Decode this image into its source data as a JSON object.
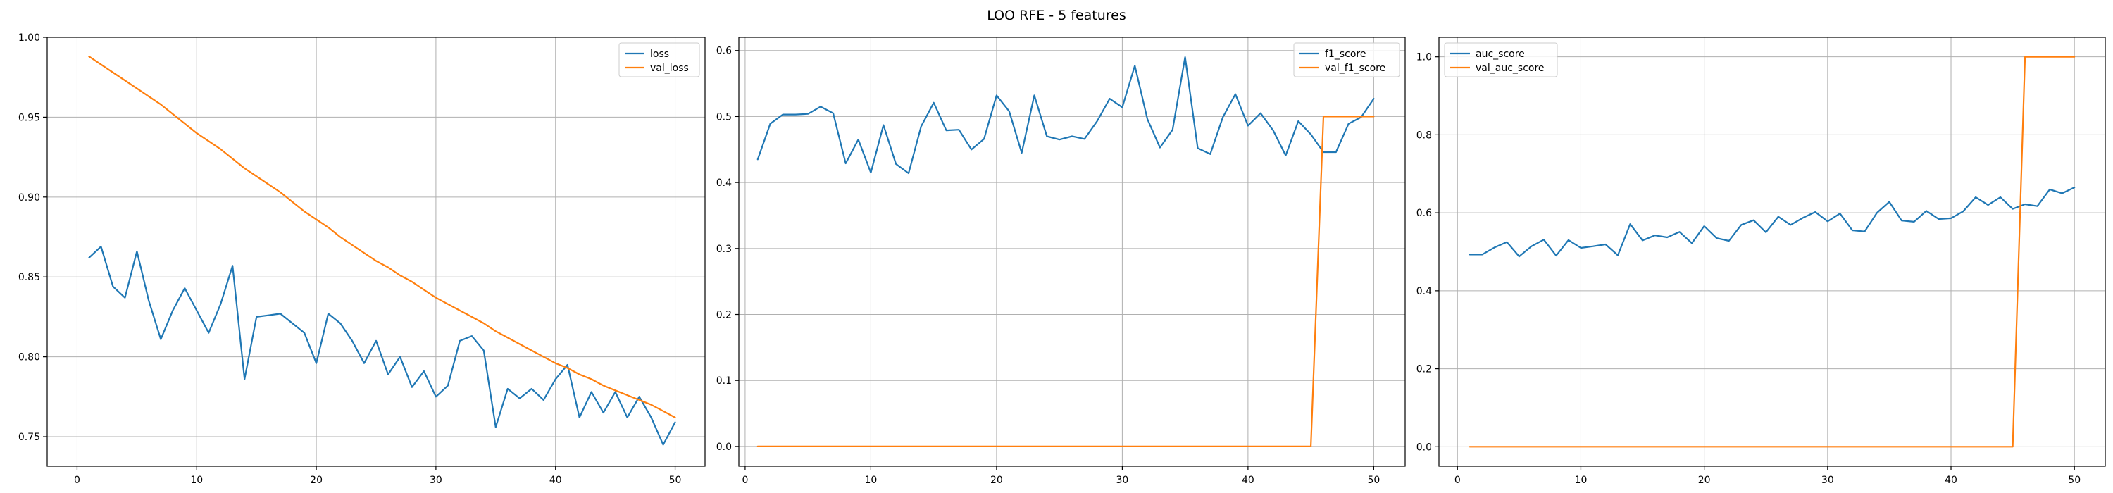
{
  "figure": {
    "suptitle": "LOO RFE - 5 features"
  },
  "chart_data": [
    {
      "type": "line",
      "x": [
        1,
        2,
        3,
        4,
        5,
        6,
        7,
        8,
        9,
        10,
        11,
        12,
        13,
        14,
        15,
        16,
        17,
        18,
        19,
        20,
        21,
        22,
        23,
        24,
        25,
        26,
        27,
        28,
        29,
        30,
        31,
        32,
        33,
        34,
        35,
        36,
        37,
        38,
        39,
        40,
        41,
        42,
        43,
        44,
        45,
        46,
        47,
        48,
        49,
        50
      ],
      "xlim": [
        -2.5,
        52.5
      ],
      "ylim": [
        0.7315,
        1.0
      ],
      "xticks": [
        0,
        10,
        20,
        30,
        40,
        50
      ],
      "yticks": [
        0.75,
        0.8,
        0.85,
        0.9,
        0.95,
        1.0
      ],
      "ytick_decimals": 2,
      "grid": true,
      "legend": "upper right",
      "series": [
        {
          "name": "loss",
          "color": "#1f77b4",
          "values": [
            0.862,
            0.869,
            0.844,
            0.837,
            0.866,
            0.835,
            0.811,
            0.829,
            0.843,
            0.829,
            0.815,
            0.833,
            0.857,
            0.786,
            0.825,
            0.826,
            0.827,
            0.821,
            0.815,
            0.796,
            0.827,
            0.821,
            0.81,
            0.796,
            0.81,
            0.789,
            0.8,
            0.781,
            0.791,
            0.775,
            0.782,
            0.81,
            0.813,
            0.804,
            0.756,
            0.78,
            0.774,
            0.78,
            0.773,
            0.786,
            0.795,
            0.762,
            0.778,
            0.765,
            0.778,
            0.762,
            0.775,
            0.762,
            0.745,
            0.759
          ]
        },
        {
          "name": "val_loss",
          "color": "#ff7f0e",
          "values": [
            0.988,
            0.983,
            0.978,
            0.973,
            0.968,
            0.963,
            0.958,
            0.952,
            0.946,
            0.94,
            0.935,
            0.93,
            0.924,
            0.918,
            0.913,
            0.908,
            0.903,
            0.897,
            0.891,
            0.886,
            0.881,
            0.875,
            0.87,
            0.865,
            0.86,
            0.856,
            0.851,
            0.847,
            0.842,
            0.837,
            0.833,
            0.829,
            0.825,
            0.821,
            0.816,
            0.812,
            0.808,
            0.804,
            0.8,
            0.796,
            0.793,
            0.789,
            0.786,
            0.782,
            0.779,
            0.776,
            0.773,
            0.77,
            0.766,
            0.762
          ]
        }
      ]
    },
    {
      "type": "line",
      "x": [
        1,
        2,
        3,
        4,
        5,
        6,
        7,
        8,
        9,
        10,
        11,
        12,
        13,
        14,
        15,
        16,
        17,
        18,
        19,
        20,
        21,
        22,
        23,
        24,
        25,
        26,
        27,
        28,
        29,
        30,
        31,
        32,
        33,
        34,
        35,
        36,
        37,
        38,
        39,
        40,
        41,
        42,
        43,
        44,
        45,
        46,
        47,
        48,
        49,
        50
      ],
      "xlim": [
        -0.5,
        52.5
      ],
      "ylim": [
        -0.03,
        0.62
      ],
      "xticks": [
        0,
        10,
        20,
        30,
        40,
        50
      ],
      "yticks": [
        0.0,
        0.1,
        0.2,
        0.3,
        0.4,
        0.5,
        0.6
      ],
      "ytick_decimals": 1,
      "grid": true,
      "legend": "upper right",
      "series": [
        {
          "name": "f1_score",
          "color": "#1f77b4",
          "values": [
            0.435,
            0.489,
            0.503,
            0.503,
            0.504,
            0.515,
            0.505,
            0.429,
            0.465,
            0.415,
            0.487,
            0.428,
            0.414,
            0.485,
            0.521,
            0.479,
            0.48,
            0.45,
            0.466,
            0.532,
            0.508,
            0.445,
            0.532,
            0.47,
            0.465,
            0.47,
            0.466,
            0.493,
            0.527,
            0.514,
            0.577,
            0.496,
            0.453,
            0.48,
            0.59,
            0.452,
            0.443,
            0.499,
            0.534,
            0.486,
            0.505,
            0.479,
            0.441,
            0.493,
            0.473,
            0.446,
            0.446,
            0.489,
            0.499,
            0.527
          ]
        },
        {
          "name": "val_f1_score",
          "color": "#ff7f0e",
          "values": [
            0,
            0,
            0,
            0,
            0,
            0,
            0,
            0,
            0,
            0,
            0,
            0,
            0,
            0,
            0,
            0,
            0,
            0,
            0,
            0,
            0,
            0,
            0,
            0,
            0,
            0,
            0,
            0,
            0,
            0,
            0,
            0,
            0,
            0,
            0,
            0,
            0,
            0,
            0,
            0,
            0,
            0,
            0,
            0,
            0,
            0.5,
            0.5,
            0.5,
            0.5,
            0.5
          ]
        }
      ]
    },
    {
      "type": "line",
      "x": [
        1,
        2,
        3,
        4,
        5,
        6,
        7,
        8,
        9,
        10,
        11,
        12,
        13,
        14,
        15,
        16,
        17,
        18,
        19,
        20,
        21,
        22,
        23,
        24,
        25,
        26,
        27,
        28,
        29,
        30,
        31,
        32,
        33,
        34,
        35,
        36,
        37,
        38,
        39,
        40,
        41,
        42,
        43,
        44,
        45,
        46,
        47,
        48,
        49,
        50
      ],
      "xlim": [
        -1.5,
        52.5
      ],
      "ylim": [
        -0.05,
        1.05
      ],
      "xticks": [
        0,
        10,
        20,
        30,
        40,
        50
      ],
      "yticks": [
        0.0,
        0.2,
        0.4,
        0.6,
        0.8,
        1.0
      ],
      "ytick_decimals": 1,
      "grid": true,
      "legend": "upper left",
      "series": [
        {
          "name": "auc_score",
          "color": "#1f77b4",
          "values": [
            0.493,
            0.493,
            0.511,
            0.525,
            0.488,
            0.514,
            0.531,
            0.49,
            0.53,
            0.51,
            0.514,
            0.519,
            0.491,
            0.571,
            0.529,
            0.542,
            0.537,
            0.551,
            0.522,
            0.566,
            0.535,
            0.528,
            0.569,
            0.581,
            0.55,
            0.59,
            0.569,
            0.587,
            0.602,
            0.578,
            0.598,
            0.555,
            0.552,
            0.6,
            0.628,
            0.58,
            0.577,
            0.605,
            0.584,
            0.586,
            0.604,
            0.64,
            0.62,
            0.64,
            0.61,
            0.622,
            0.617,
            0.66,
            0.65,
            0.665
          ]
        },
        {
          "name": "val_auc_score",
          "color": "#ff7f0e",
          "values": [
            0,
            0,
            0,
            0,
            0,
            0,
            0,
            0,
            0,
            0,
            0,
            0,
            0,
            0,
            0,
            0,
            0,
            0,
            0,
            0,
            0,
            0,
            0,
            0,
            0,
            0,
            0,
            0,
            0,
            0,
            0,
            0,
            0,
            0,
            0,
            0,
            0,
            0,
            0,
            0,
            0,
            0,
            0,
            0,
            0,
            1,
            1,
            1,
            1,
            1
          ]
        }
      ]
    }
  ]
}
